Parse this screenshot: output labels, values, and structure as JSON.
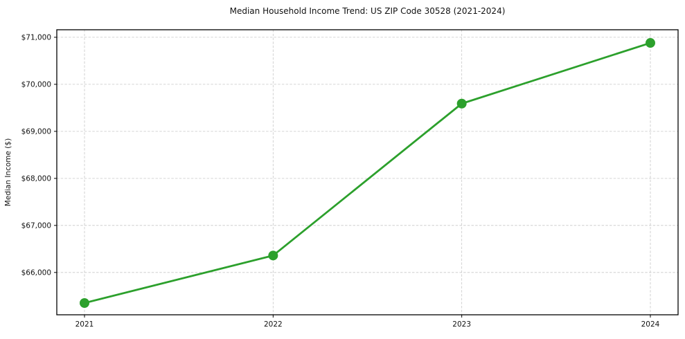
{
  "chart_data": {
    "type": "line",
    "title": "Median Household Income Trend: US ZIP Code 30528 (2021-2024)",
    "ylabel": "Median Income ($)",
    "xlabel": "",
    "x": [
      "2021",
      "2022",
      "2023",
      "2024"
    ],
    "values": [
      65350,
      66360,
      69590,
      70880
    ],
    "ylim": [
      65100,
      71160
    ],
    "yticks": [
      66000,
      67000,
      68000,
      69000,
      70000,
      71000
    ],
    "ytick_labels": [
      "$66,000",
      "$67,000",
      "$68,000",
      "$69,000",
      "$70,000",
      "$71,000"
    ],
    "grid": true,
    "grid_style": "dashed",
    "legend": "none",
    "colors": {
      "line": "#2ca02c",
      "marker": "#2ca02c",
      "grid": "#c7c7c7",
      "axis": "#000000",
      "text": "#111111",
      "background": "#ffffff"
    }
  }
}
